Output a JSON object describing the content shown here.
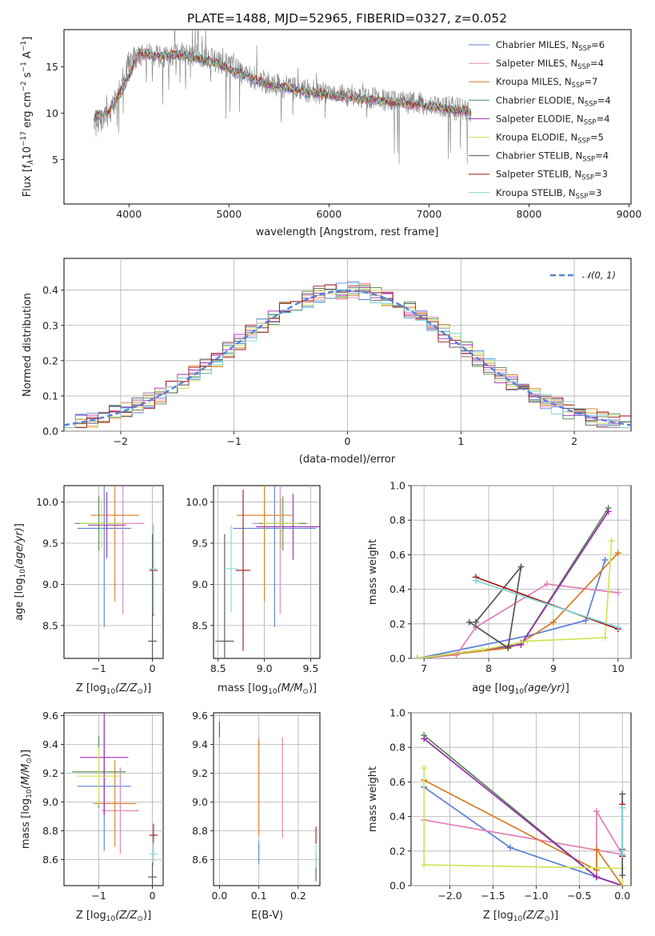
{
  "title": "PLATE=1488, MJD=52965, FIBERID=0327, z=0.052",
  "colors": [
    "#5b7fd6",
    "#e07fb6",
    "#d97b1e",
    "#4f8a4f",
    "#9b2cb3",
    "#cce65a",
    "#555555",
    "#a51616",
    "#7fd6d6"
  ],
  "legend_names": [
    "Chabrier MILES, N_SSP=6",
    "Salpeter MILES, N_SSP=4",
    "Kroupa MILES, N_SSP=7",
    "Chabrier ELODIE, N_SSP=4",
    "Salpeter ELODIE, N_SSP=4",
    "Kroupa ELODIE, N_SSP=5",
    "Chabrier STELIB, N_SSP=4",
    "Salpeter STELIB, N_SSP=3",
    "Kroupa STELIB, N_SSP=3"
  ],
  "chart_data": [
    {
      "id": "spectrum",
      "type": "line",
      "xlabel": "wavelength [Angstrom, rest frame]",
      "ylabel": "Flux [fλ10^-17 erg cm^-2 s^-1 A^-1]",
      "xlim": [
        3350,
        9020
      ],
      "ylim": [
        0.2,
        19
      ],
      "xticks": [
        4000,
        5000,
        6000,
        7000,
        8000,
        9000
      ],
      "yticks": [
        5,
        10,
        15
      ],
      "legend_position": "top-right",
      "data_x": [
        3650,
        3700,
        3800,
        3900,
        4000,
        4100,
        4200,
        4300,
        4400,
        4500,
        4700,
        4900,
        5100,
        5300,
        5500,
        5700,
        5900,
        6100,
        6300,
        6500,
        6700,
        6900,
        7100,
        7300,
        7420
      ],
      "data_y": [
        9.8,
        9.0,
        9.8,
        12.5,
        15.5,
        16.2,
        16.4,
        16.0,
        16.0,
        16.5,
        16.2,
        15.5,
        14.5,
        13.5,
        13.0,
        12.5,
        12.2,
        12.0,
        11.7,
        11.5,
        11.3,
        11.0,
        10.8,
        10.4,
        10.2
      ],
      "model_x": [
        3650,
        3800,
        3950,
        4100,
        4300,
        4500,
        4700,
        4900,
        5100,
        5300,
        5500,
        5700,
        5900,
        6100,
        6300,
        6500,
        6700,
        6900,
        7100,
        7300,
        7420
      ],
      "model_y": [
        9.6,
        10.2,
        12.8,
        16.5,
        16.2,
        16.3,
        15.9,
        15.2,
        14.3,
        13.4,
        12.9,
        12.4,
        12.1,
        11.8,
        11.6,
        11.3,
        11.1,
        10.9,
        10.6,
        10.3,
        10.1
      ]
    },
    {
      "id": "residuals",
      "type": "line",
      "xlabel": "(data-model)/error",
      "ylabel": "Normed distribution",
      "xlim": [
        -2.5,
        2.5
      ],
      "ylim": [
        0,
        0.49
      ],
      "xticks": [
        -2,
        -1,
        0,
        1,
        2
      ],
      "yticks": [
        0.0,
        0.1,
        0.2,
        0.3,
        0.4
      ],
      "legend": "𝒩(0, 1)",
      "legend_position": "top-right",
      "bin_width": 0.1,
      "bin_start": -2.5,
      "gaussian_sigma": 1.0
    },
    {
      "id": "age_vs_Z",
      "type": "scatter",
      "xlabel": "Z [log10(Z/Z⊙)]",
      "ylabel": "age [log10(age/yr)]",
      "xlim": [
        -1.65,
        0.2
      ],
      "ylim": [
        8.1,
        10.2
      ],
      "xticks": [
        -1,
        0
      ],
      "yticks": [
        8.5,
        9.0,
        9.5,
        10.0
      ],
      "points": [
        {
          "x": -0.9,
          "y": 9.68,
          "xerr": 0.5,
          "yerr": 1.2
        },
        {
          "x": -0.55,
          "y": 9.74,
          "xerr": 0.4,
          "yerr": 1.1
        },
        {
          "x": -0.7,
          "y": 9.84,
          "xerr": 0.45,
          "yerr": 1.05
        },
        {
          "x": -1.0,
          "y": 9.74,
          "xerr": 0.45,
          "yerr": 0.33
        },
        {
          "x": -0.85,
          "y": 9.72,
          "xerr": 0.35,
          "yerr": 0.4
        },
        {
          "x": -0.95,
          "y": 9.74,
          "xerr": 0.4,
          "yerr": 0.3
        },
        {
          "x": 0.0,
          "y": 8.31,
          "xerr": 0.08,
          "yerr": 1.3
        },
        {
          "x": 0.02,
          "y": 9.17,
          "xerr": 0.08,
          "yerr": 0.55
        },
        {
          "x": 0.02,
          "y": 9.19,
          "xerr": 0.07,
          "yerr": 0.55
        }
      ]
    },
    {
      "id": "age_vs_mass",
      "type": "scatter",
      "xlabel": "mass [log10(M/M⊙)]",
      "ylabel": "",
      "xlim": [
        8.45,
        9.6
      ],
      "ylim": [
        8.1,
        10.2
      ],
      "xticks": [
        8.5,
        9.0,
        9.5
      ],
      "yticks": [
        8.5,
        9.0,
        9.5,
        10.0
      ],
      "points": [
        {
          "x": 9.11,
          "y": 9.68,
          "xerr": 0.45,
          "yerr": 1.2
        },
        {
          "x": 9.17,
          "y": 9.74,
          "xerr": 0.3,
          "yerr": 1.1
        },
        {
          "x": 9.0,
          "y": 9.84,
          "xerr": 0.3,
          "yerr": 1.05
        },
        {
          "x": 9.2,
          "y": 9.74,
          "xerr": 0.25,
          "yerr": 0.33
        },
        {
          "x": 9.31,
          "y": 9.7,
          "xerr": 0.4,
          "yerr": 0.4
        },
        {
          "x": 9.18,
          "y": 9.74,
          "xerr": 0.2,
          "yerr": 0.3
        },
        {
          "x": 8.57,
          "y": 8.31,
          "xerr": 0.1,
          "yerr": 1.3
        },
        {
          "x": 8.77,
          "y": 9.17,
          "xerr": 0.08,
          "yerr": 0.98
        },
        {
          "x": 8.64,
          "y": 9.19,
          "xerr": 0.08,
          "yerr": 0.53
        }
      ]
    },
    {
      "id": "weight_vs_age",
      "type": "line",
      "xlabel": "age [log10(age/yr)]",
      "ylabel": "mass weight",
      "xlim": [
        6.8,
        10.2
      ],
      "ylim": [
        0,
        1.0
      ],
      "xticks": [
        7,
        8,
        9,
        10
      ],
      "yticks": [
        0.0,
        0.2,
        0.4,
        0.6,
        0.8,
        1.0
      ],
      "series": [
        {
          "x": [
            6.9,
            8.6,
            9.5,
            9.8
          ],
          "y": [
            0.0,
            0.13,
            0.22,
            0.57
          ]
        },
        {
          "x": [
            6.9,
            7.5,
            7.8,
            8.9,
            10.0
          ],
          "y": [
            0.0,
            0.02,
            0.18,
            0.43,
            0.38
          ]
        },
        {
          "x": [
            6.9,
            8.3,
            8.5,
            9.0,
            10.0
          ],
          "y": [
            0.0,
            0.06,
            0.09,
            0.21,
            0.61
          ]
        },
        {
          "x": [
            6.9,
            8.5,
            9.85
          ],
          "y": [
            0.0,
            0.08,
            0.87
          ]
        },
        {
          "x": [
            6.9,
            8.5,
            9.85
          ],
          "y": [
            0.0,
            0.08,
            0.85
          ]
        },
        {
          "x": [
            6.9,
            7.9,
            8.6,
            9.8,
            9.9
          ],
          "y": [
            0.0,
            0.05,
            0.1,
            0.12,
            0.68
          ]
        },
        {
          "x": [
            7.7,
            8.3,
            8.5,
            7.8
          ],
          "y": [
            0.21,
            0.06,
            0.53,
            0.21
          ]
        },
        {
          "x": [
            7.8,
            10.0
          ],
          "y": [
            0.47,
            0.17
          ]
        },
        {
          "x": [
            7.8,
            10.0
          ],
          "y": [
            0.45,
            0.18
          ]
        }
      ]
    },
    {
      "id": "mass_vs_Z",
      "type": "scatter",
      "xlabel": "Z [log10(Z/Z⊙)]",
      "ylabel": "mass [log10(M/M⊙)]",
      "xlim": [
        -1.65,
        0.2
      ],
      "ylim": [
        8.42,
        9.62
      ],
      "xticks": [
        -1,
        0
      ],
      "yticks": [
        8.6,
        8.8,
        9.0,
        9.2,
        9.4,
        9.6
      ],
      "points": [
        {
          "x": -0.9,
          "y": 9.11,
          "xerr": 0.5,
          "yerr": 0.45
        },
        {
          "x": -0.6,
          "y": 8.94,
          "xerr": 0.35,
          "yerr": 0.3
        },
        {
          "x": -0.7,
          "y": 8.99,
          "xerr": 0.4,
          "yerr": 0.3
        },
        {
          "x": -1.0,
          "y": 9.21,
          "xerr": 0.5,
          "yerr": 0.25
        },
        {
          "x": -0.9,
          "y": 9.31,
          "xerr": 0.45,
          "yerr": 0.4
        },
        {
          "x": -1.0,
          "y": 9.18,
          "xerr": 0.4,
          "yerr": 0.2
        },
        {
          "x": 0.0,
          "y": 8.48,
          "xerr": 0.08,
          "yerr": 0.1
        },
        {
          "x": 0.02,
          "y": 8.77,
          "xerr": 0.08,
          "yerr": 0.08
        },
        {
          "x": 0.02,
          "y": 8.64,
          "xerr": 0.07,
          "yerr": 0.08
        }
      ]
    },
    {
      "id": "mass_vs_ebv",
      "type": "scatter",
      "xlabel": "E(B-V)",
      "ylabel": "",
      "xlim": [
        -0.015,
        0.255
      ],
      "ylim": [
        8.42,
        9.62
      ],
      "xticks": [
        0.0,
        0.1,
        0.2
      ],
      "yticks": [
        8.6,
        8.8,
        9.0,
        9.2,
        9.4,
        9.6
      ],
      "points": [
        {
          "x": 0.1,
          "y": 8.65,
          "xerr": 0,
          "yerr": 0.08
        },
        {
          "x": 0.16,
          "y": 9.1,
          "xerr": 0,
          "yerr": 0.35
        },
        {
          "x": 0.1,
          "y": 9.1,
          "xerr": 0,
          "yerr": 0.34
        },
        {
          "x": 0.0,
          "y": 9.22,
          "xerr": 0,
          "yerr": 0.25
        },
        {
          "x": 0.0,
          "y": 9.5,
          "xerr": 0,
          "yerr": 0.06
        },
        {
          "x": 0.0,
          "y": 9.15,
          "xerr": 0,
          "yerr": 0.3
        },
        {
          "x": 0.245,
          "y": 8.55,
          "xerr": 0,
          "yerr": 0.1
        },
        {
          "x": 0.245,
          "y": 8.77,
          "xerr": 0,
          "yerr": 0.06
        },
        {
          "x": 0.245,
          "y": 8.62,
          "xerr": 0,
          "yerr": 0.08
        }
      ]
    },
    {
      "id": "weight_vs_Z",
      "type": "line",
      "xlabel": "Z [log10(Z/Z⊙)]",
      "ylabel": "mass weight",
      "xlim": [
        -2.45,
        0.1
      ],
      "ylim": [
        0,
        1.0
      ],
      "xticks": [
        -2.0,
        -1.5,
        -1.0,
        -0.5,
        0.0
      ],
      "yticks": [
        0.0,
        0.2,
        0.4,
        0.6,
        0.8,
        1.0
      ],
      "series": [
        {
          "x": [
            -2.3,
            -1.3,
            -0.3,
            0.0
          ],
          "y": [
            0.57,
            0.22,
            0.05,
            0.0
          ]
        },
        {
          "x": [
            -2.3,
            0.0,
            -0.3,
            -0.3,
            0.0
          ],
          "y": [
            0.38,
            0.18,
            0.43,
            0.05,
            0.0
          ]
        },
        {
          "x": [
            -2.3,
            -0.3,
            -0.3,
            0.0
          ],
          "y": [
            0.61,
            0.09,
            0.21,
            0.0
          ]
        },
        {
          "x": [
            -2.3,
            -0.3,
            0.0
          ],
          "y": [
            0.87,
            0.05,
            0.0
          ]
        },
        {
          "x": [
            -2.3,
            -0.3,
            0.0
          ],
          "y": [
            0.85,
            0.05,
            0.0
          ]
        },
        {
          "x": [
            -2.3,
            -2.3,
            0.0,
            0.0
          ],
          "y": [
            0.68,
            0.12,
            0.1,
            0.0
          ]
        },
        {
          "x": [
            0.0,
            0.0,
            0.0
          ],
          "y": [
            0.53,
            0.21,
            0.06
          ]
        },
        {
          "x": [
            0.0,
            0.0
          ],
          "y": [
            0.47,
            0.17
          ]
        },
        {
          "x": [
            0.0,
            0.0
          ],
          "y": [
            0.45,
            0.18
          ]
        }
      ]
    }
  ]
}
